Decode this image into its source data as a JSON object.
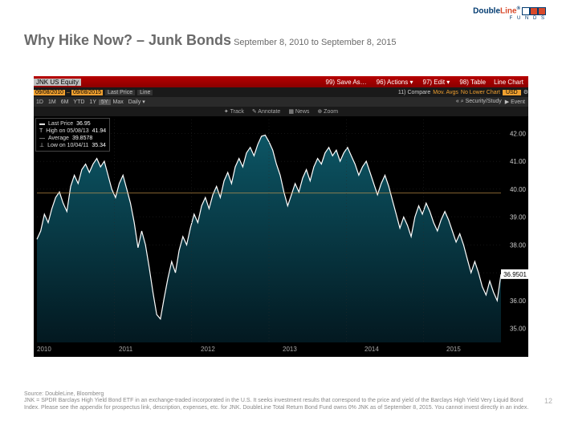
{
  "logo": {
    "part1": "Double",
    "part2": "Line",
    "reg": "®",
    "funds": "F U N D S"
  },
  "title": {
    "main": "Why Hike Now? – Junk Bonds",
    "sub": " September 8, 2010 to September 8, 2015"
  },
  "bar1": {
    "ticker": "JNK US Equity",
    "menu": [
      "99) Save As…",
      "96) Actions ▾",
      "97) Edit ▾",
      "98) Table"
    ],
    "right": "Line Chart"
  },
  "bar2": {
    "date_from": "09/08/2010",
    "date_to": "09/08/2015",
    "last_price_lbl": "Last Price",
    "line_lbl": "Line",
    "compare": "11) Compare",
    "movavg": "Mov. Avgs",
    "nolower": "No Lower Chart",
    "usd": "USD"
  },
  "bar3": {
    "tf": [
      "1D",
      "1M",
      "6M",
      "YTD",
      "1Y",
      "5Y",
      "Max"
    ],
    "active": "5Y",
    "daily": "Daily ▾",
    "right": [
      "« ⌕ Security/Study",
      "▶ Event"
    ]
  },
  "bar4": {
    "items": [
      "✦ Track",
      "✎ Annotate",
      "▦ News",
      "⊕ Zoom"
    ]
  },
  "legend": {
    "rows": [
      {
        "sym": "▬",
        "lbl": "Last Price",
        "val": "36.95"
      },
      {
        "sym": "T",
        "lbl": "High on 05/08/13",
        "val": "41.94"
      },
      {
        "sym": "—",
        "lbl": "Average",
        "val": "39.8578"
      },
      {
        "sym": "⊥",
        "lbl": "Low on 10/04/11",
        "val": "35.34"
      }
    ]
  },
  "chart": {
    "bg": "#000000",
    "line_color": "#ffffff",
    "area_top": "#0d5a6a",
    "area_bottom": "#031a22",
    "grid_color": "#2a2a2a",
    "avg_line_color": "#d8a050",
    "avg_value": 39.8578,
    "ylim": [
      34.5,
      42.5
    ],
    "yticks": [
      35,
      36,
      37,
      38,
      39,
      40,
      41,
      42
    ],
    "xyears": [
      "2010",
      "2011",
      "2012",
      "2013",
      "2014",
      "2015"
    ],
    "price_tag": "36.9501",
    "series": [
      38.2,
      38.5,
      39.1,
      38.8,
      39.3,
      39.7,
      39.9,
      39.5,
      39.2,
      40.1,
      40.5,
      40.2,
      40.7,
      40.9,
      40.6,
      40.9,
      41.1,
      40.8,
      41.0,
      40.5,
      40.0,
      39.7,
      40.2,
      40.5,
      40.0,
      39.5,
      38.8,
      37.9,
      38.5,
      38.0,
      37.2,
      36.3,
      35.5,
      35.34,
      36.1,
      36.8,
      37.4,
      37.0,
      37.8,
      38.3,
      38.0,
      38.6,
      39.1,
      38.8,
      39.4,
      39.7,
      39.3,
      39.8,
      40.1,
      39.7,
      40.3,
      40.6,
      40.2,
      40.8,
      41.1,
      40.8,
      41.3,
      41.5,
      41.2,
      41.6,
      41.9,
      41.94,
      41.7,
      41.4,
      40.9,
      40.5,
      39.9,
      39.4,
      39.8,
      40.2,
      39.9,
      40.4,
      40.7,
      40.3,
      40.8,
      41.1,
      40.9,
      41.3,
      41.5,
      41.2,
      41.4,
      41.0,
      41.3,
      41.5,
      41.2,
      40.9,
      40.5,
      40.8,
      41.0,
      40.6,
      40.2,
      39.8,
      40.2,
      40.5,
      40.1,
      39.6,
      39.1,
      38.6,
      39.0,
      38.7,
      38.3,
      39.0,
      39.4,
      39.1,
      39.5,
      39.2,
      38.8,
      38.5,
      38.9,
      39.2,
      38.9,
      38.5,
      38.1,
      38.4,
      38.0,
      37.5,
      37.0,
      37.4,
      37.0,
      36.5,
      36.2,
      36.7,
      36.3,
      36.0,
      36.95
    ]
  },
  "footer": {
    "source": "Source: DoubleLine, Bloomberg",
    "disclaimer": "JNK = SPDR Barclays High Yield Bond ETF in an exchange-traded incorporated in the U.S. It seeks investment results that correspond to the price and yield of the Barclays High Yield Very Liquid Bond Index. Please see the appendix for prospectus link, description, expenses, etc. for JNK. DoubleLine Total Return Bond Fund owns 0% JNK as of September 8, 2015. You cannot invest directly in an index."
  },
  "page": "12"
}
